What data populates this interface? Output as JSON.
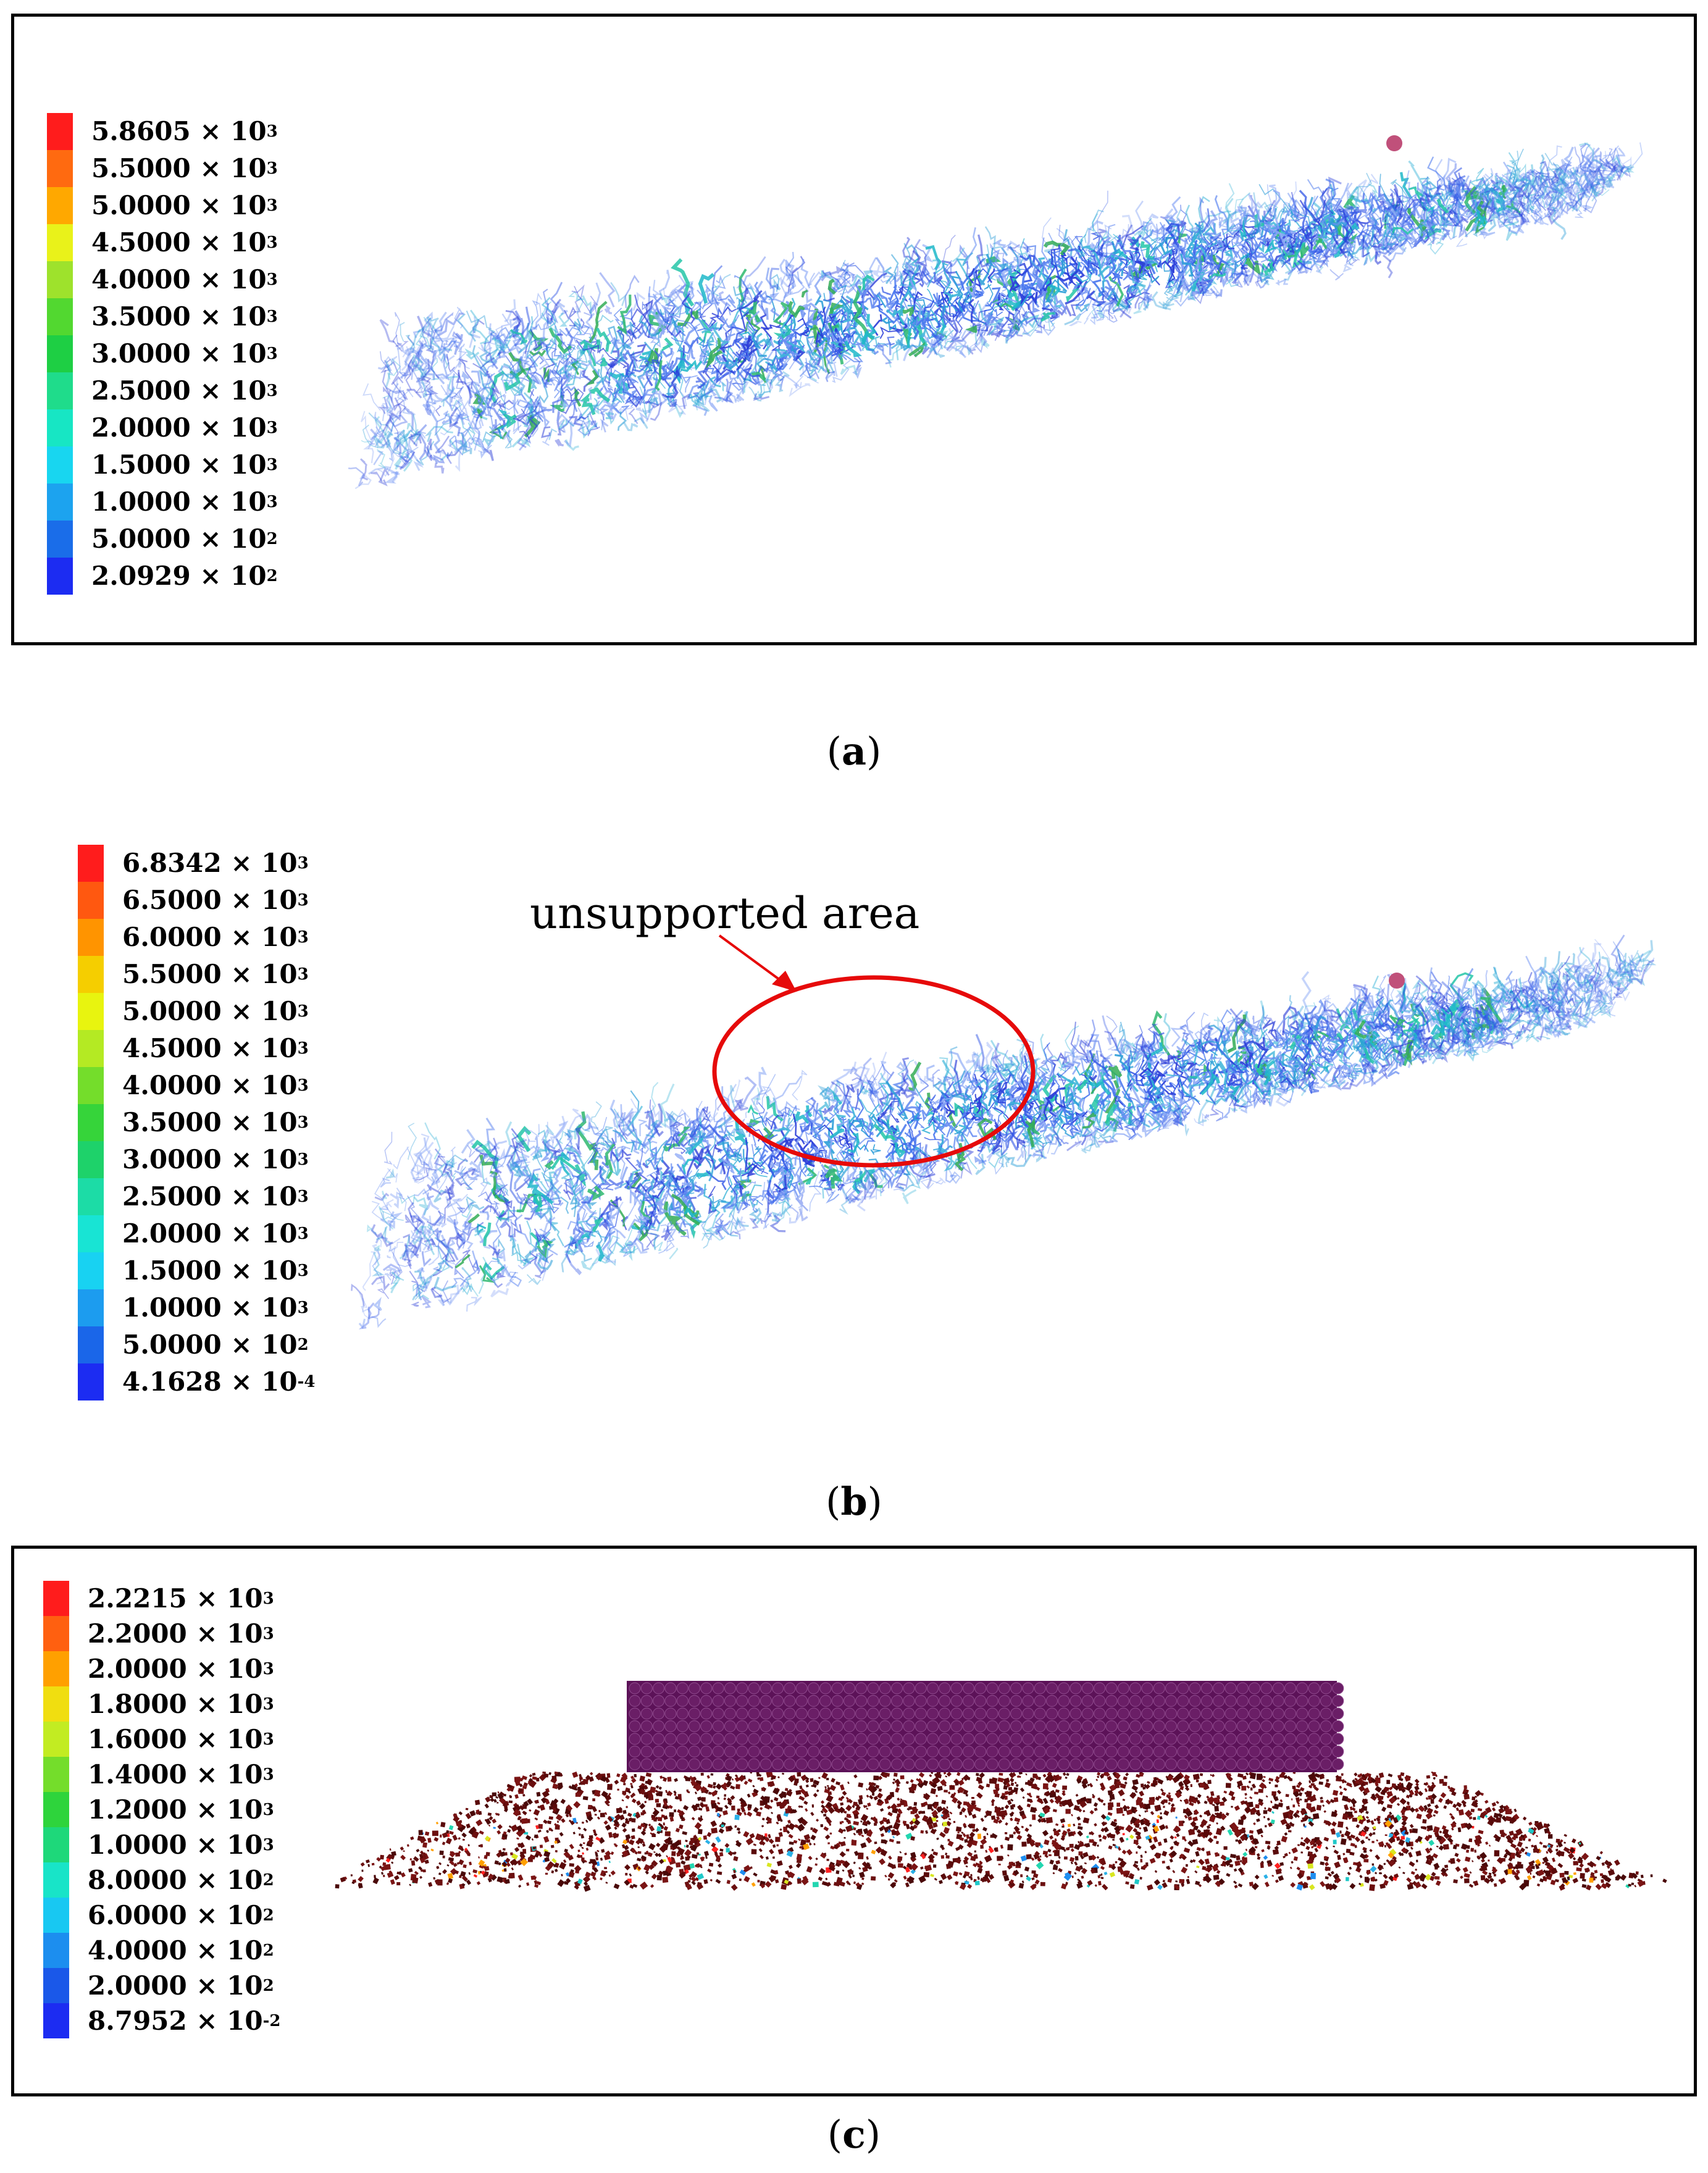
{
  "panels": [
    {
      "id": "a",
      "caption_label": "a",
      "legend": [
        {
          "mant": "5.8605",
          "exp": "3",
          "color": "#ff1c1c"
        },
        {
          "mant": "5.5000",
          "exp": "3",
          "color": "#ff6a10"
        },
        {
          "mant": "5.0000",
          "exp": "3",
          "color": "#ffa800"
        },
        {
          "mant": "4.5000",
          "exp": "3",
          "color": "#e9f21a"
        },
        {
          "mant": "4.0000",
          "exp": "3",
          "color": "#9ee22c"
        },
        {
          "mant": "3.5000",
          "exp": "3",
          "color": "#52d830"
        },
        {
          "mant": "3.0000",
          "exp": "3",
          "color": "#1ecf44"
        },
        {
          "mant": "2.5000",
          "exp": "3",
          "color": "#1fdc8b"
        },
        {
          "mant": "2.0000",
          "exp": "3",
          "color": "#17e6c4"
        },
        {
          "mant": "1.5000",
          "exp": "3",
          "color": "#18d6f0"
        },
        {
          "mant": "1.0000",
          "exp": "3",
          "color": "#1ca3ef"
        },
        {
          "mant": "5.0000",
          "exp": "2",
          "color": "#1a6de9"
        },
        {
          "mant": "2.0929",
          "exp": "2",
          "color": "#1c2cf2"
        }
      ]
    },
    {
      "id": "b",
      "caption_label": "b",
      "annotation": "unsupported area",
      "legend": [
        {
          "mant": "6.8342",
          "exp": "3",
          "color": "#ff1c1c"
        },
        {
          "mant": "6.5000",
          "exp": "3",
          "color": "#ff5810"
        },
        {
          "mant": "6.0000",
          "exp": "3",
          "color": "#ff9400"
        },
        {
          "mant": "5.5000",
          "exp": "3",
          "color": "#f5ce00"
        },
        {
          "mant": "5.0000",
          "exp": "3",
          "color": "#e8f40f"
        },
        {
          "mant": "4.5000",
          "exp": "3",
          "color": "#b4ea23"
        },
        {
          "mant": "4.0000",
          "exp": "3",
          "color": "#74dd2b"
        },
        {
          "mant": "3.5000",
          "exp": "3",
          "color": "#36d43a"
        },
        {
          "mant": "3.0000",
          "exp": "3",
          "color": "#1ed26a"
        },
        {
          "mant": "2.5000",
          "exp": "3",
          "color": "#1cdca6"
        },
        {
          "mant": "2.0000",
          "exp": "3",
          "color": "#18e4d4"
        },
        {
          "mant": "1.5000",
          "exp": "3",
          "color": "#18d2f2"
        },
        {
          "mant": "1.0000",
          "exp": "3",
          "color": "#1c9cef"
        },
        {
          "mant": "5.0000",
          "exp": "2",
          "color": "#1a66e9"
        },
        {
          "mant": "4.1628",
          "exp": "-4",
          "color": "#1c2cf2"
        }
      ]
    },
    {
      "id": "c",
      "caption_label": "c",
      "legend": [
        {
          "mant": "2.2215",
          "exp": "3",
          "color": "#ff1c1c"
        },
        {
          "mant": "2.2000",
          "exp": "3",
          "color": "#ff6010"
        },
        {
          "mant": "2.0000",
          "exp": "3",
          "color": "#ffa000"
        },
        {
          "mant": "1.8000",
          "exp": "3",
          "color": "#f0de10"
        },
        {
          "mant": "1.6000",
          "exp": "3",
          "color": "#c2ec22"
        },
        {
          "mant": "1.4000",
          "exp": "3",
          "color": "#74dd2b"
        },
        {
          "mant": "1.2000",
          "exp": "3",
          "color": "#2ed43c"
        },
        {
          "mant": "1.0000",
          "exp": "3",
          "color": "#1ed87a"
        },
        {
          "mant": "8.0000",
          "exp": "2",
          "color": "#18e4c8"
        },
        {
          "mant": "6.0000",
          "exp": "2",
          "color": "#18c8f2"
        },
        {
          "mant": "4.0000",
          "exp": "2",
          "color": "#1c8eef"
        },
        {
          "mant": "2.0000",
          "exp": "2",
          "color": "#1a58e9"
        },
        {
          "mant": "8.7952",
          "exp": "-2",
          "color": "#1c2cf2"
        }
      ]
    }
  ]
}
